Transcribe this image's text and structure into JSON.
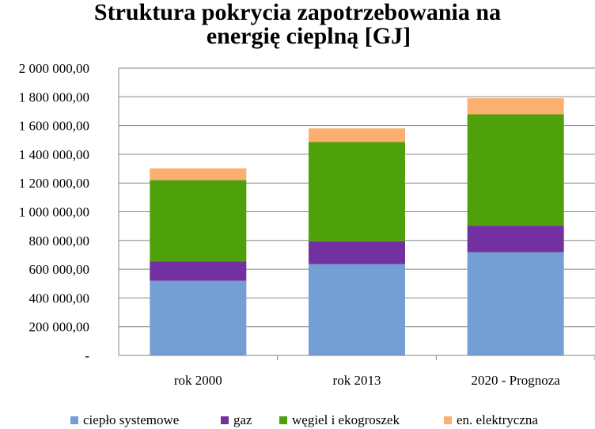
{
  "chart_data": {
    "type": "bar",
    "stacked": true,
    "title_line1": "Struktura pokrycia zapotrzebowania na",
    "title_line2": "energię cieplną [GJ]",
    "xlabel": "",
    "ylabel": "",
    "categories": [
      "rok 2000",
      "rok 2013",
      "2020 - Prognoza"
    ],
    "ylim": [
      0,
      2000000
    ],
    "yticks": [
      0,
      200000,
      400000,
      600000,
      800000,
      1000000,
      1200000,
      1400000,
      1600000,
      1800000,
      2000000
    ],
    "ytick_labels": [
      "-",
      "200 000,00",
      "400 000,00",
      "600 000,00",
      "800 000,00",
      "1 000 000,00",
      "1 200 000,00",
      "1 400 000,00",
      "1 600 000,00",
      "1 800 000,00",
      "2 000 000,00"
    ],
    "grid": true,
    "legend_position": "bottom",
    "series": [
      {
        "name": "ciepło systemowe",
        "color": "#739FD5",
        "values": [
          520000,
          635000,
          718000
        ]
      },
      {
        "name": "gaz",
        "color": "#7230A0",
        "values": [
          135000,
          160000,
          185000
        ]
      },
      {
        "name": "węgiel i ekogroszek",
        "color": "#4EA10A",
        "values": [
          565000,
          690000,
          775000
        ]
      },
      {
        "name": "en. elektryczna",
        "color": "#FBB070",
        "values": [
          82000,
          95000,
          112000
        ]
      }
    ]
  }
}
